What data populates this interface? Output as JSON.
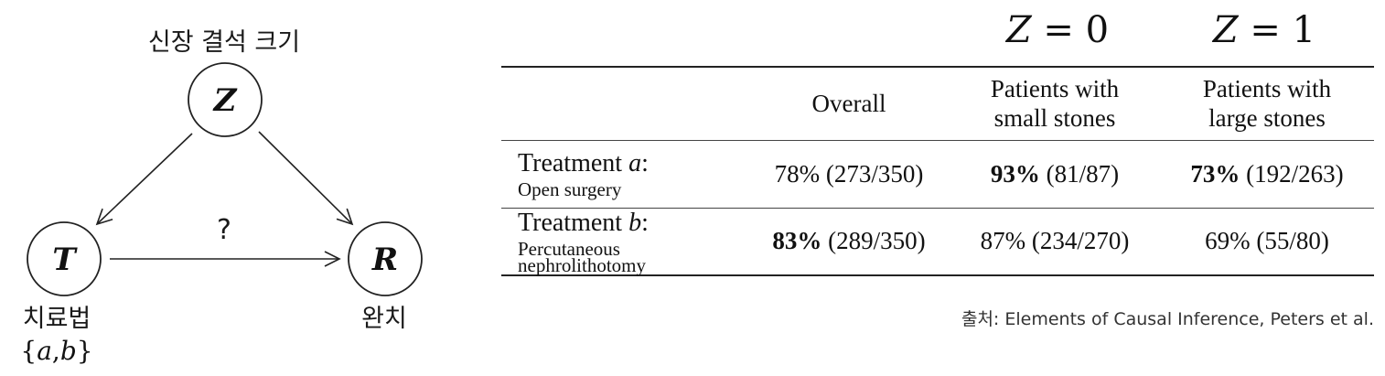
{
  "diagram": {
    "z_caption": "신장 결석 크기",
    "z_letter": "Z",
    "t_letter": "T",
    "r_letter": "R",
    "question": "?",
    "t_caption": "치료법",
    "t_domain_open": "{",
    "t_domain_a": "a",
    "t_domain_comma": ",",
    "t_domain_b": "b",
    "t_domain_close": "}",
    "r_caption": "완치"
  },
  "table": {
    "z0_var": "Z",
    "z0_eq": " = 0",
    "z1_var": "Z",
    "z1_eq": " = 1",
    "headers": {
      "overall": "Overall",
      "small_line1": "Patients with",
      "small_line2": "small stones",
      "large_line1": "Patients with",
      "large_line2": "large stones"
    },
    "rows": [
      {
        "label_prefix": "Treatment ",
        "label_var": "a",
        "label_suffix": ":",
        "sub": "Open surgery",
        "overall_pct": "78%",
        "overall_frac": " (273/350)",
        "small_pct": "93%",
        "small_frac": " (81/87)",
        "large_pct": "73%",
        "large_frac": " (192/263)"
      },
      {
        "label_prefix": "Treatment ",
        "label_var": "b",
        "label_suffix": ":",
        "sub_line1": "Percutaneous",
        "sub_line2": "nephrolithotomy",
        "overall_pct": "83%",
        "overall_frac": " (289/350)",
        "small_pct": "87%",
        "small_frac": " (234/270)",
        "large_pct": "69%",
        "large_frac": " (55/80)"
      }
    ]
  },
  "source": "출처: Elements of Causal Inference, Peters et al."
}
